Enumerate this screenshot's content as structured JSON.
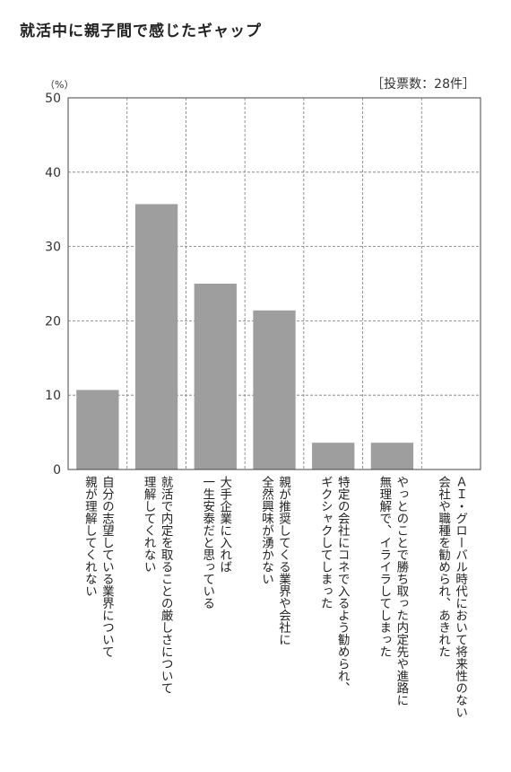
{
  "chart_data": {
    "type": "bar",
    "title": "就活中に親子間で感じたギャップ",
    "note": "［投票数：28件］",
    "yunit": "（%）",
    "ylim": [
      0,
      50
    ],
    "yticks": [
      "0",
      "10",
      "20",
      "30",
      "40",
      "50"
    ],
    "grid": true,
    "color": "#9e9e9e",
    "categories": [
      "自分の志望している業界について\n親が理解してくれない",
      "就活で内定を取ることの厳しさについて\n理解してくれない",
      "大手企業に入れば\n一生安泰だと思っている",
      "親が推奨してくる業界や会社に\n全然興味が湧かない",
      "特定の会社にコネで入るよう勧められ、\nギクシャクしてしまった",
      "やっとのことで勝ち取った内定先や進路に\n無理解で、イライラしてしまった",
      "ＡＩ・グローバル時代において将来性のない\n会社や職種を勧められ、あきれた"
    ],
    "values": [
      10.7,
      35.7,
      25.0,
      21.4,
      3.6,
      3.6,
      0
    ]
  }
}
